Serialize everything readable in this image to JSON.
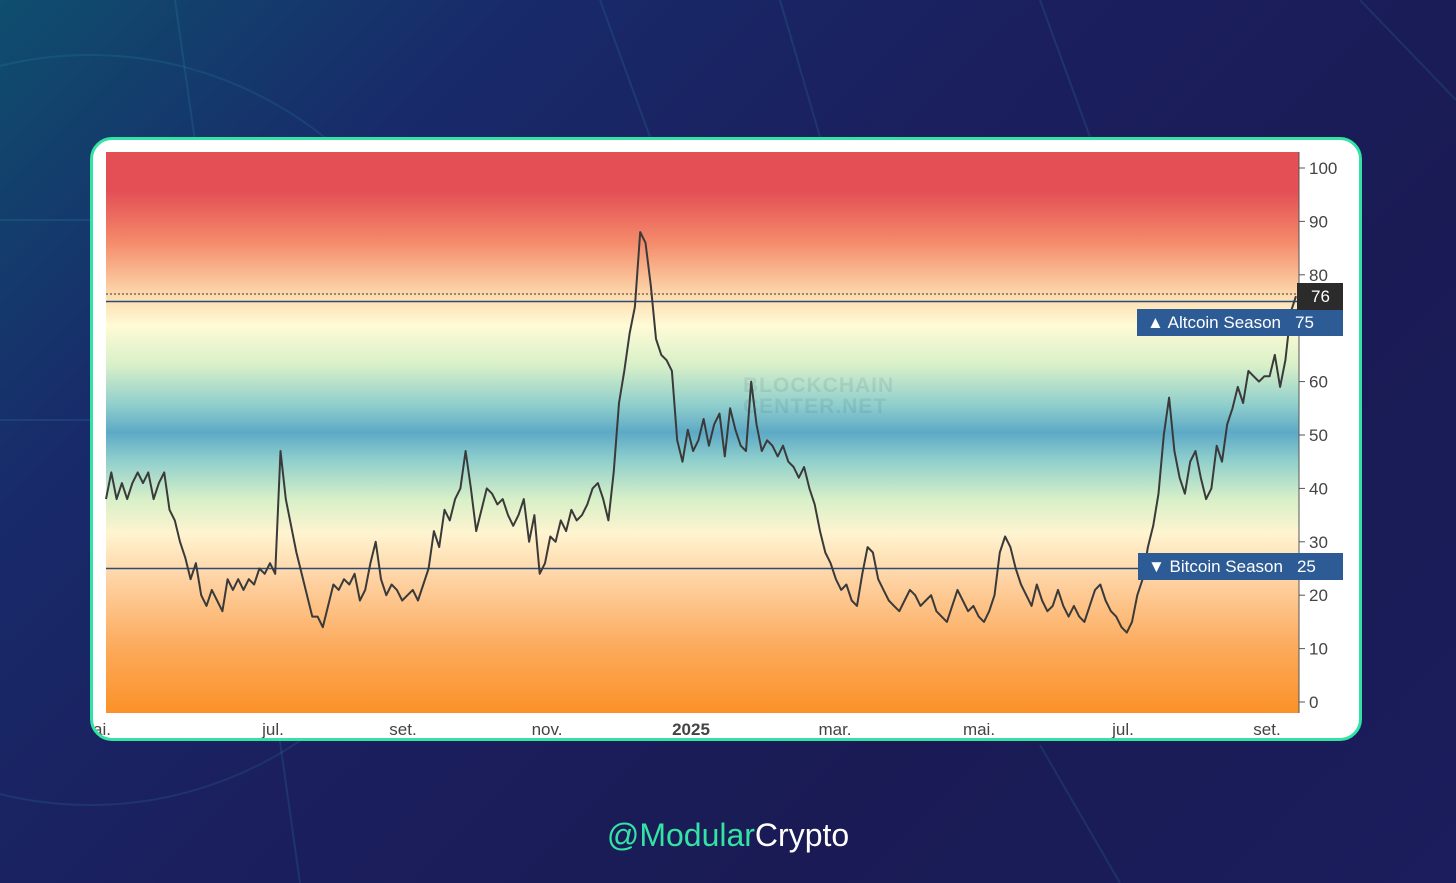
{
  "footer": {
    "handle_accent": "@Modular",
    "handle_rest": "Crypto"
  },
  "watermark": {
    "line1": "BLOCKCHAIN",
    "line2": "CENTER.NET"
  },
  "colors": {
    "card_border": "#33e3a3",
    "tag_bg": "#2d5b95",
    "line": "#3a3a3a"
  },
  "chart_data": {
    "type": "line",
    "title": "",
    "xlabel": "",
    "ylabel": "",
    "ylim": [
      0,
      100
    ],
    "yticks": [
      0,
      10,
      20,
      30,
      40,
      50,
      60,
      70,
      80,
      90,
      100
    ],
    "x_tick_labels": [
      "ai.",
      "jul.",
      "set.",
      "nov.",
      "2025",
      "mar.",
      "mai.",
      "jul.",
      "set."
    ],
    "current_value": "76",
    "thresholds": [
      {
        "name": "Altcoin Season",
        "value": 75,
        "label": "▲ Altcoin Season",
        "value_label": "75"
      },
      {
        "name": "Bitcoin Season",
        "value": 25,
        "label": "▼ Bitcoin Season",
        "value_label": "25"
      }
    ],
    "grid": false,
    "series": [
      {
        "values": [
          38,
          43,
          38,
          41,
          38,
          41,
          43,
          41,
          43,
          38,
          41,
          43,
          36,
          34,
          30,
          27,
          23,
          26,
          20,
          18,
          21,
          19,
          17,
          23,
          21,
          23,
          21,
          23,
          22,
          25,
          24,
          26,
          24,
          47,
          38,
          33,
          28,
          24,
          20,
          16,
          16,
          14,
          18,
          22,
          21,
          23,
          22,
          24,
          19,
          21,
          26,
          30,
          23,
          20,
          22,
          21,
          19,
          20,
          21,
          19,
          22,
          25,
          32,
          29,
          36,
          34,
          38,
          40,
          47,
          40,
          32,
          36,
          40,
          39,
          37,
          38,
          35,
          33,
          35,
          38,
          30,
          35,
          24,
          26,
          31,
          30,
          34,
          32,
          36,
          34,
          35,
          37,
          40,
          41,
          38,
          34,
          43,
          56,
          62,
          69,
          74,
          88,
          86,
          78,
          68,
          65,
          64,
          62,
          49,
          45,
          51,
          47,
          49,
          53,
          48,
          52,
          54,
          46,
          55,
          51,
          48,
          47,
          60,
          52,
          47,
          49,
          48,
          46,
          48,
          45,
          44,
          42,
          44,
          40,
          37,
          32,
          28,
          26,
          23,
          21,
          22,
          19,
          18,
          24,
          29,
          28,
          23,
          21,
          19,
          18,
          17,
          19,
          21,
          20,
          18,
          19,
          20,
          17,
          16,
          15,
          18,
          21,
          19,
          17,
          18,
          16,
          15,
          17,
          20,
          28,
          31,
          29,
          25,
          22,
          20,
          18,
          22,
          19,
          17,
          18,
          21,
          18,
          16,
          18,
          16,
          15,
          18,
          21,
          22,
          19,
          17,
          16,
          14,
          13,
          15,
          20,
          23,
          29,
          33,
          39,
          50,
          57,
          47,
          42,
          39,
          45,
          47,
          42,
          38,
          40,
          48,
          45,
          52,
          55,
          59,
          56,
          62,
          61,
          60,
          61,
          61,
          65,
          59,
          64,
          73,
          76
        ]
      }
    ]
  }
}
